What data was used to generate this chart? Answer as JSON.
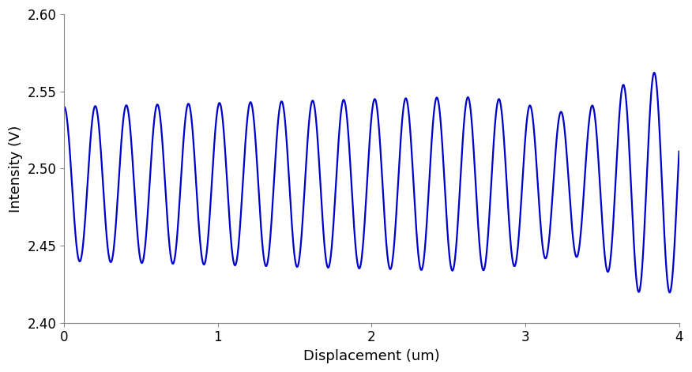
{
  "title": "",
  "xlabel": "Displacement (um)",
  "ylabel": "Intensity (V)",
  "xlim": [
    0,
    4
  ],
  "ylim": [
    2.4,
    2.6
  ],
  "xticks": [
    0,
    1,
    2,
    3,
    4
  ],
  "yticks": [
    2.4,
    2.45,
    2.5,
    2.55,
    2.6
  ],
  "line_color": "#0000CC",
  "line_width": 1.6,
  "n_points": 8000,
  "x_max": 4.0,
  "frequency": 4.95,
  "mean_start": 2.49,
  "mean_end": 2.49,
  "amp_start": 0.056,
  "amp_end": 0.056,
  "background_color": "#ffffff",
  "label_fontsize": 13,
  "tick_fontsize": 12
}
